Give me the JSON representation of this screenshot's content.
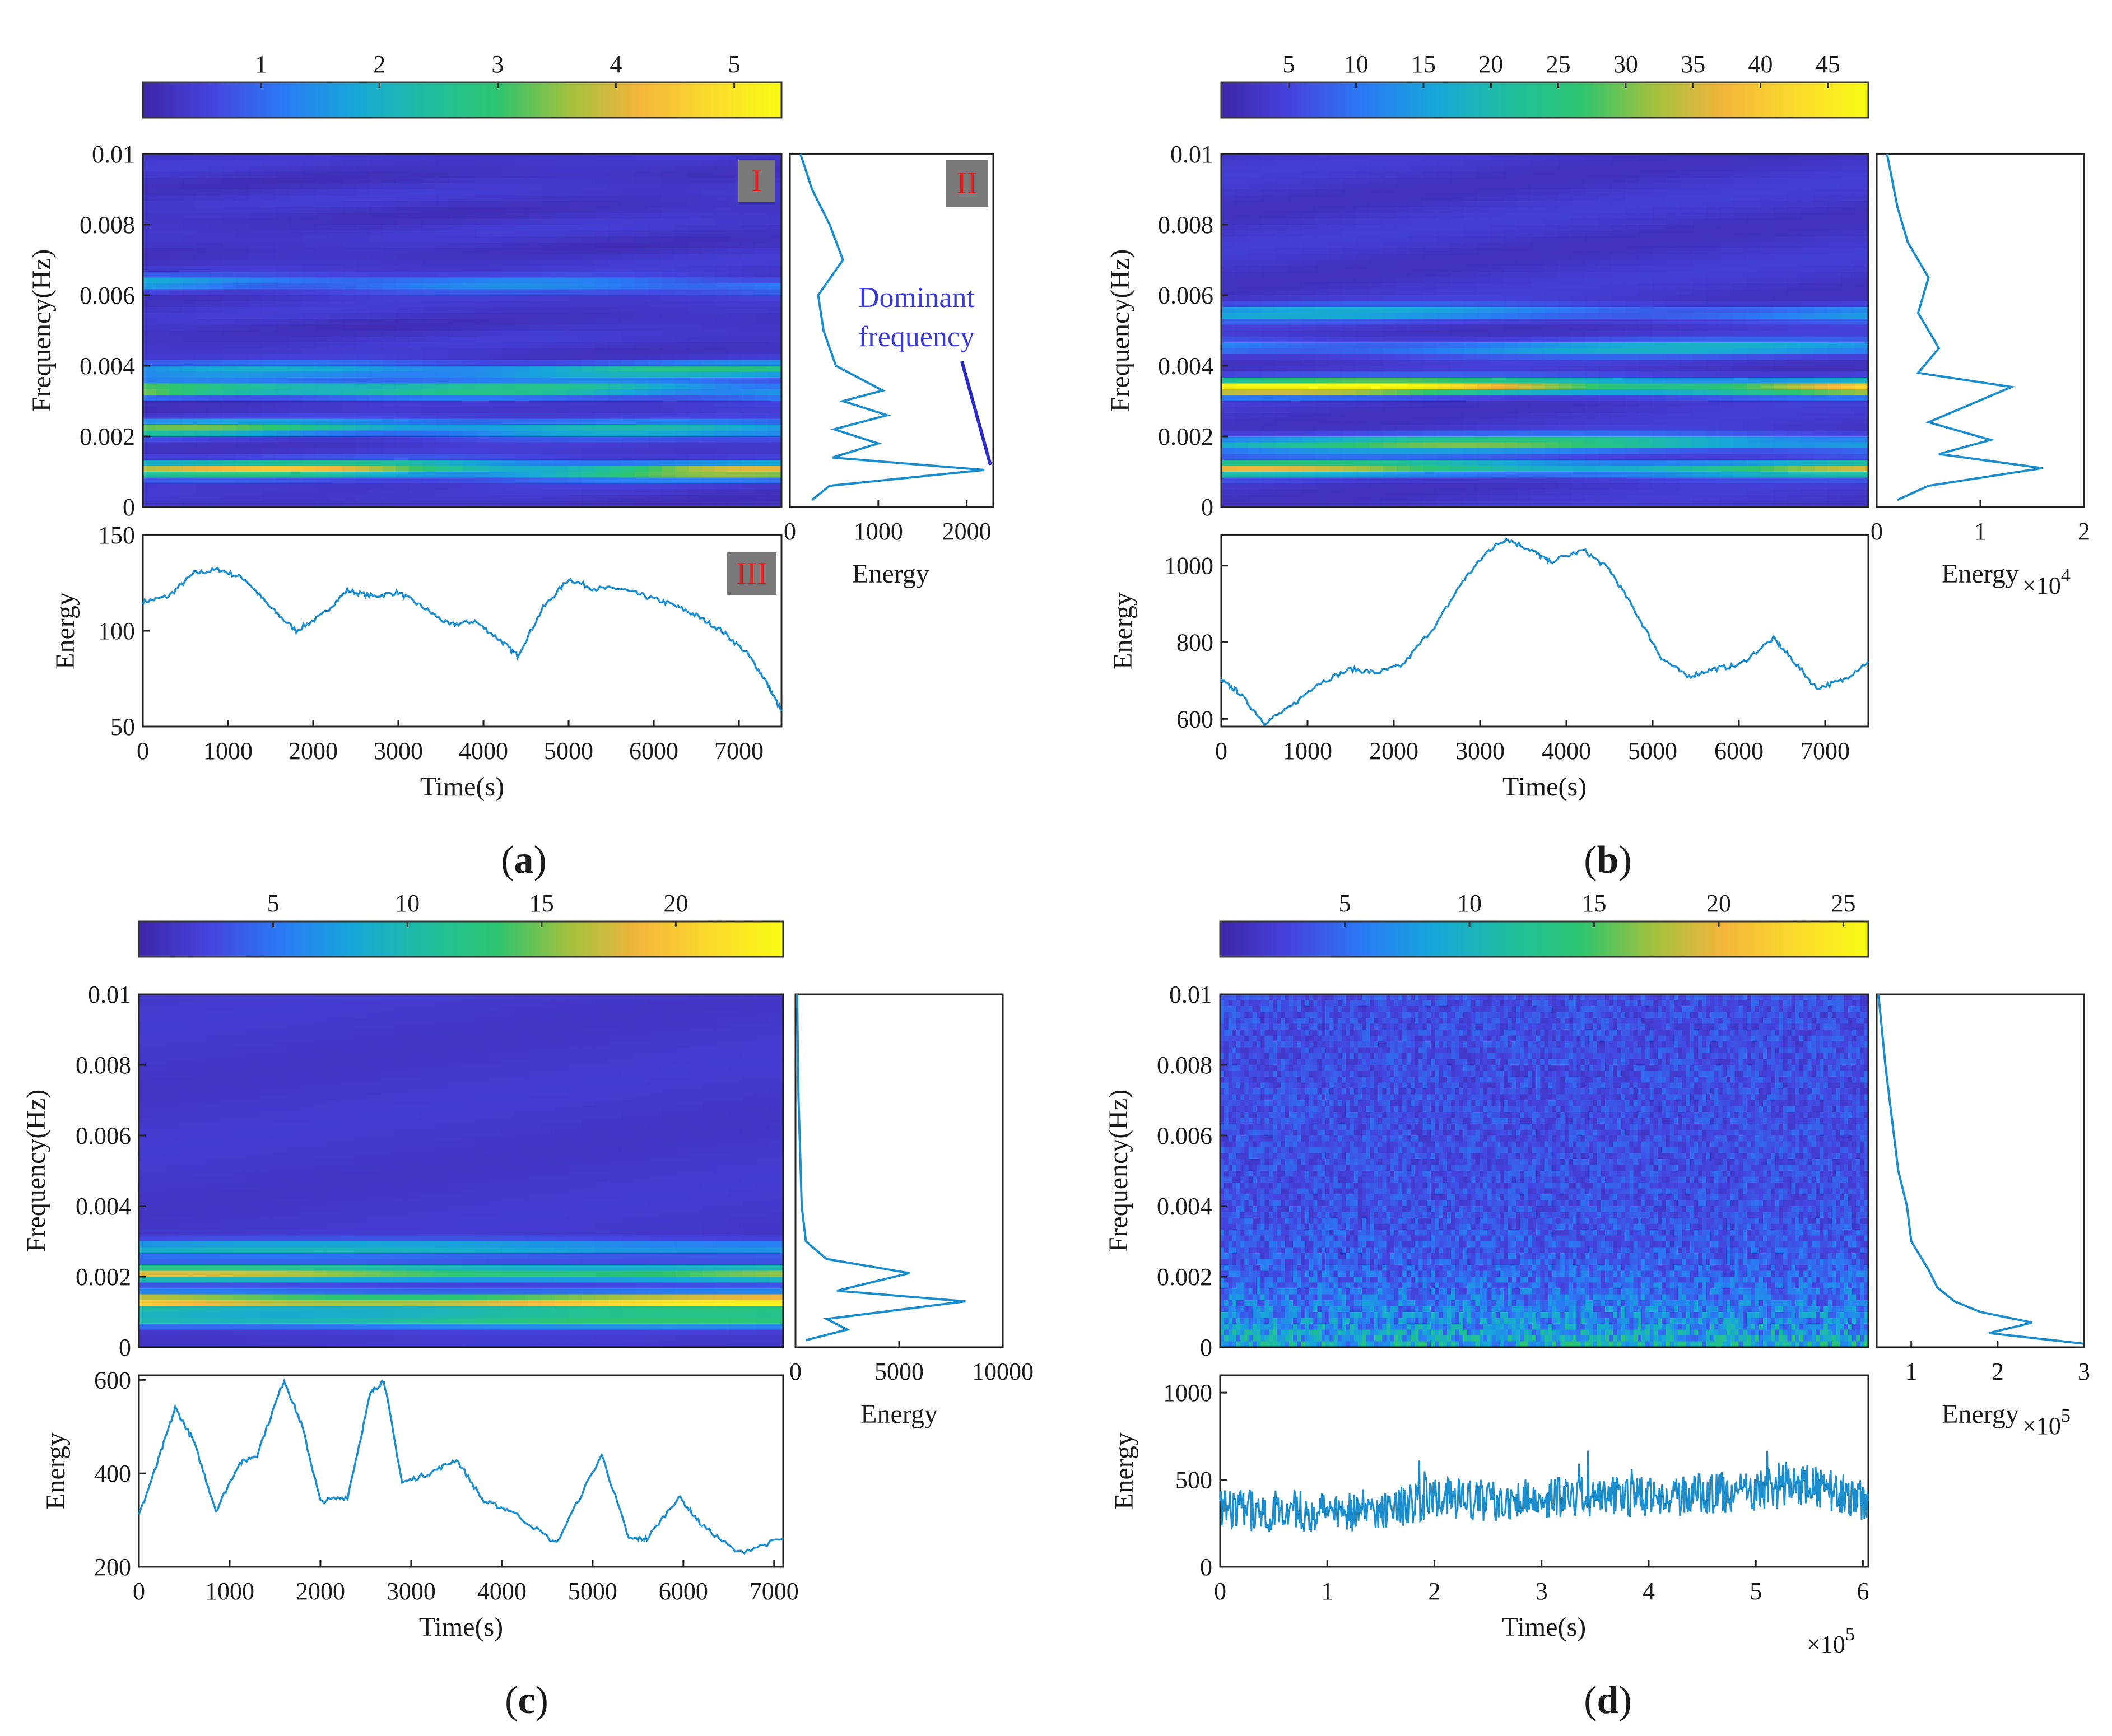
{
  "figure": {
    "captions": [
      "(a)",
      "(b)",
      "(c)",
      "(d)"
    ],
    "caption_letters": [
      "a",
      "b",
      "c",
      "d"
    ],
    "colormap": [
      "#3e26a8",
      "#4544e0",
      "#2a7bf5",
      "#16a8d8",
      "#1fbea0",
      "#2cc46f",
      "#a1c13f",
      "#f4b53c",
      "#fadb2c",
      "#f9fb15"
    ]
  },
  "chart_data": [
    {
      "panel": "a",
      "type": "heatmap",
      "title": "",
      "colorbar": {
        "ticks": [
          "1",
          "2",
          "3",
          "4",
          "5"
        ],
        "range": [
          0,
          5.4
        ]
      },
      "spectrogram": {
        "ylabel": "Frequency(Hz)",
        "ylim": [
          0,
          0.01
        ],
        "yticks": [
          "0",
          "0.002",
          "0.004",
          "0.006",
          "0.008",
          "0.01"
        ],
        "xlim": [
          0,
          7500
        ],
        "bands": [
          {
            "f": 0.00105,
            "value": 4.8
          },
          {
            "f": 0.0022,
            "value": 2.8
          },
          {
            "f": 0.0033,
            "value": 3.2
          },
          {
            "f": 0.0039,
            "value": 2.2
          },
          {
            "f": 0.0063,
            "value": 1.7
          }
        ],
        "labels": [
          "I",
          "II",
          "III"
        ]
      },
      "energy_spectrum": {
        "xlabel": "Energy",
        "xlim": [
          0,
          2300
        ],
        "xticks": [
          "0",
          "1000",
          "2000"
        ],
        "multiplier": "",
        "multiplier_exp": "",
        "frequency": [
          0.0002,
          0.0006,
          0.00105,
          0.0014,
          0.0018,
          0.0022,
          0.0026,
          0.003,
          0.0033,
          0.004,
          0.005,
          0.006,
          0.007,
          0.008,
          0.009,
          0.01
        ],
        "energy": [
          250,
          450,
          2200,
          480,
          1000,
          500,
          1100,
          600,
          1050,
          520,
          380,
          320,
          600,
          450,
          250,
          120
        ],
        "annotation": [
          "Dominant",
          "frequency"
        ]
      },
      "energy_time": {
        "ylabel": "Energy",
        "xlabel": "Time(s)",
        "ylim": [
          50,
          150
        ],
        "yticks": [
          "50",
          "100",
          "150"
        ],
        "xlim": [
          0,
          7500
        ],
        "xticks": [
          "0",
          "1000",
          "2000",
          "3000",
          "4000",
          "5000",
          "6000",
          "7000"
        ],
        "x_multiplier": "",
        "x_multiplier_exp": "",
        "time": [
          0,
          300,
          600,
          900,
          1200,
          1500,
          1800,
          2100,
          2400,
          2700,
          3000,
          3300,
          3600,
          3900,
          4200,
          4400,
          4700,
          5000,
          5300,
          5600,
          5900,
          6200,
          6500,
          6800,
          7100,
          7300,
          7500
        ],
        "energy": [
          115,
          118,
          130,
          132,
          127,
          112,
          100,
          108,
          121,
          118,
          120,
          112,
          103,
          105,
          95,
          87,
          112,
          127,
          122,
          122,
          118,
          114,
          108,
          100,
          88,
          75,
          58
        ]
      }
    },
    {
      "panel": "b",
      "type": "heatmap",
      "title": "",
      "colorbar": {
        "ticks": [
          "5",
          "10",
          "15",
          "20",
          "25",
          "30",
          "35",
          "40",
          "45"
        ],
        "range": [
          0,
          48
        ]
      },
      "spectrogram": {
        "ylabel": "Frequency(Hz)",
        "ylim": [
          0,
          0.01
        ],
        "yticks": [
          "0",
          "0.002",
          "0.004",
          "0.006",
          "0.008",
          "0.01"
        ],
        "xlim": [
          0,
          7500
        ],
        "bands": [
          {
            "f": 0.0011,
            "value": 30
          },
          {
            "f": 0.0018,
            "value": 25
          },
          {
            "f": 0.0034,
            "value": 44
          },
          {
            "f": 0.0045,
            "value": 14
          },
          {
            "f": 0.0055,
            "value": 13
          }
        ],
        "labels": []
      },
      "energy_spectrum": {
        "xlabel": "Energy",
        "xlim": [
          0,
          2
        ],
        "xticks": [
          "0",
          "1",
          "2"
        ],
        "multiplier": "×10",
        "multiplier_exp": "4",
        "frequency": [
          0.0002,
          0.0006,
          0.0011,
          0.0015,
          0.0019,
          0.0024,
          0.0029,
          0.0034,
          0.0038,
          0.0045,
          0.0055,
          0.0065,
          0.0075,
          0.0085,
          0.01
        ],
        "energy": [
          0.2,
          0.5,
          1.6,
          0.6,
          1.1,
          0.5,
          0.9,
          1.3,
          0.4,
          0.6,
          0.4,
          0.5,
          0.3,
          0.2,
          0.1
        ],
        "annotation": []
      },
      "energy_time": {
        "ylabel": "Energy",
        "xlabel": "Time(s)",
        "ylim": [
          580,
          1080
        ],
        "yticks": [
          "600",
          "800",
          "1000"
        ],
        "xlim": [
          0,
          7500
        ],
        "xticks": [
          "0",
          "1000",
          "2000",
          "3000",
          "4000",
          "5000",
          "6000",
          "7000"
        ],
        "x_multiplier": "",
        "x_multiplier_exp": "",
        "time": [
          0,
          200,
          500,
          800,
          1100,
          1500,
          1800,
          2100,
          2500,
          2800,
          3100,
          3300,
          3600,
          3800,
          4200,
          4500,
          4800,
          5100,
          5400,
          5700,
          6000,
          6400,
          6600,
          6900,
          7200,
          7500
        ],
        "energy": [
          700,
          670,
          590,
          630,
          690,
          730,
          720,
          740,
          850,
          960,
          1040,
          1070,
          1040,
          1010,
          1040,
          990,
          880,
          760,
          710,
          730,
          740,
          810,
          760,
          680,
          700,
          750
        ]
      }
    },
    {
      "panel": "c",
      "type": "heatmap",
      "title": "",
      "colorbar": {
        "ticks": [
          "5",
          "10",
          "15",
          "20"
        ],
        "range": [
          0,
          24
        ]
      },
      "spectrogram": {
        "ylabel": "Frequency(Hz)",
        "ylim": [
          0,
          0.01
        ],
        "yticks": [
          "0",
          "0.002",
          "0.004",
          "0.006",
          "0.008",
          "0.01"
        ],
        "xlim": [
          0,
          7100
        ],
        "bands": [
          {
            "f": 0.0013,
            "value": 22
          },
          {
            "f": 0.0021,
            "value": 16
          },
          {
            "f": 0.0008,
            "value": 12
          },
          {
            "f": 0.0028,
            "value": 8
          }
        ],
        "labels": []
      },
      "energy_spectrum": {
        "xlabel": "Energy",
        "xlim": [
          0,
          10000
        ],
        "xticks": [
          "0",
          "5000",
          "10000"
        ],
        "multiplier": "",
        "multiplier_exp": "",
        "frequency": [
          0.0002,
          0.0005,
          0.0008,
          0.0013,
          0.0016,
          0.0021,
          0.0025,
          0.003,
          0.0035,
          0.004,
          0.005,
          0.006,
          0.007,
          0.008,
          0.009,
          0.01
        ],
        "energy": [
          500,
          2500,
          1500,
          8200,
          2000,
          5500,
          1500,
          500,
          400,
          300,
          250,
          200,
          150,
          120,
          100,
          80
        ],
        "annotation": []
      },
      "energy_time": {
        "ylabel": "Energy",
        "xlabel": "Time(s)",
        "ylim": [
          200,
          610
        ],
        "yticks": [
          "200",
          "400",
          "600"
        ],
        "xlim": [
          0,
          7100
        ],
        "xticks": [
          "0",
          "1000",
          "2000",
          "3000",
          "4000",
          "5000",
          "6000",
          "7000"
        ],
        "x_multiplier": "",
        "x_multiplier_exp": "",
        "time": [
          0,
          200,
          400,
          600,
          850,
          1100,
          1300,
          1600,
          1800,
          2000,
          2300,
          2550,
          2700,
          2900,
          3200,
          3500,
          3800,
          4100,
          4600,
          5100,
          5400,
          5600,
          5950,
          6200,
          6600,
          7100
        ],
        "energy": [
          310,
          420,
          540,
          470,
          320,
          420,
          440,
          600,
          500,
          340,
          350,
          570,
          600,
          380,
          400,
          430,
          340,
          320,
          250,
          440,
          260,
          260,
          350,
          290,
          230,
          260
        ]
      }
    },
    {
      "panel": "d",
      "type": "heatmap",
      "title": "",
      "colorbar": {
        "ticks": [
          "5",
          "10",
          "15",
          "20",
          "25"
        ],
        "range": [
          0,
          26
        ]
      },
      "spectrogram": {
        "ylabel": "Frequency(Hz)",
        "ylim": [
          0,
          0.01
        ],
        "yticks": [
          "0",
          "0.002",
          "0.004",
          "0.006",
          "0.008",
          "0.01"
        ],
        "xlim": [
          0,
          6.05
        ],
        "bands": [],
        "labels": []
      },
      "energy_spectrum": {
        "xlabel": "Energy",
        "xlim": [
          0.6,
          3
        ],
        "xticks": [
          "1",
          "2",
          "3"
        ],
        "multiplier": "×10",
        "multiplier_exp": "5",
        "frequency": [
          0.0001,
          0.0004,
          0.0007,
          0.001,
          0.0013,
          0.0017,
          0.0022,
          0.003,
          0.004,
          0.005,
          0.006,
          0.007,
          0.008,
          0.009,
          0.01
        ],
        "energy": [
          3.0,
          1.9,
          2.4,
          1.8,
          1.5,
          1.3,
          1.2,
          1.0,
          0.95,
          0.85,
          0.8,
          0.75,
          0.7,
          0.66,
          0.62
        ],
        "annotation": []
      },
      "energy_time": {
        "ylabel": "Energy",
        "xlabel": "Time(s)",
        "ylim": [
          0,
          1100
        ],
        "yticks": [
          "0",
          "500",
          "1000"
        ],
        "xlim": [
          0,
          6.05
        ],
        "xticks": [
          "0",
          "1",
          "2",
          "3",
          "4",
          "5",
          "6"
        ],
        "x_multiplier": "×10",
        "x_multiplier_exp": "5",
        "time": [
          0,
          0.5,
          1,
          1.5,
          2,
          2.5,
          3,
          3.5,
          4,
          4.5,
          5,
          5.4,
          5.8,
          6.05
        ],
        "energy": [
          330,
          320,
          320,
          330,
          390,
          380,
          400,
          410,
          400,
          420,
          430,
          480,
          420,
          380
        ]
      }
    }
  ]
}
